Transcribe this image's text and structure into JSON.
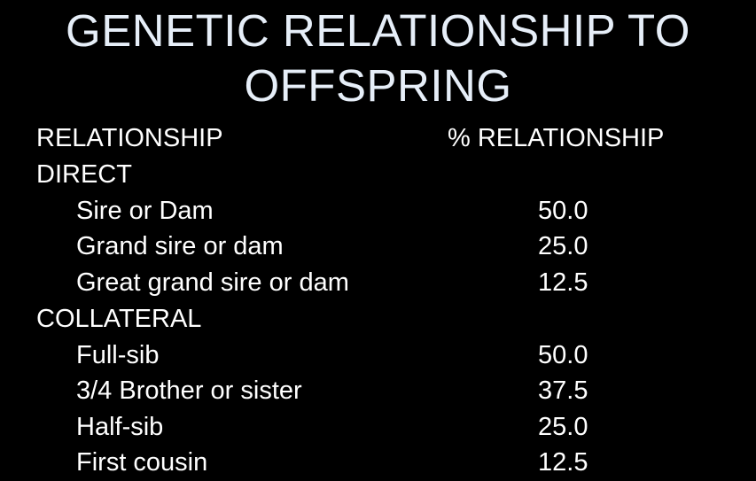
{
  "slide": {
    "title_line1": "GENETIC RELATIONSHIP TO",
    "title_line2": "OFFSPRING"
  },
  "table": {
    "header": {
      "relationship": "RELATIONSHIP",
      "percent": "% RELATIONSHIP"
    },
    "groups": [
      {
        "name": "DIRECT",
        "rows": [
          {
            "label": "Sire or Dam",
            "value": "50.0"
          },
          {
            "label": "Grand sire or dam",
            "value": "25.0"
          },
          {
            "label": "Great grand sire or dam",
            "value": "12.5"
          }
        ]
      },
      {
        "name": "COLLATERAL",
        "rows": [
          {
            "label": "Full-sib",
            "value": "50.0"
          },
          {
            "label": "3/4 Brother or sister",
            "value": "37.5"
          },
          {
            "label": "Half-sib",
            "value": "25.0"
          },
          {
            "label": "First cousin",
            "value": "12.5"
          }
        ]
      }
    ]
  }
}
